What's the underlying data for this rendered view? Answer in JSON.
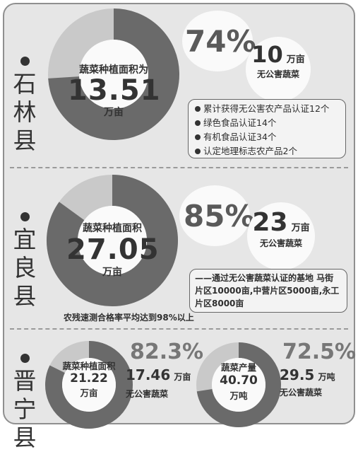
{
  "colors": {
    "dark": "#6a6a6a",
    "light": "#c9c9c9",
    "panel": "#e6e6e6",
    "text": "#333333"
  },
  "shilin": {
    "county": "石林县",
    "donut_label": "蔬菜种植面积为",
    "area_value": "13.51",
    "area_unit": "万亩",
    "percent": "74%",
    "percent_value": 74,
    "pollution_free_value": "10",
    "pollution_free_unit": "万亩",
    "pollution_free_label": "无公害蔬菜",
    "certifications": [
      "累计获得无公害农产品认证12个",
      "绿色食品认证14个",
      "有机食品认证34个",
      "认定地理标志农产品2个"
    ]
  },
  "yiliang": {
    "county": "宜良县",
    "donut_label": "蔬菜种植面积",
    "area_value": "27.05",
    "area_unit": "万亩",
    "percent": "85%",
    "percent_value": 85,
    "pollution_free_value": "23",
    "pollution_free_unit": "万亩",
    "pollution_free_label": "无公害蔬菜",
    "note": "——通过无公害蔬菜认证的基地 马街片区10000亩,中营片区5000亩,永工片区8000亩",
    "pass_rate": "农残速测合格率平均达到98%以上"
  },
  "jinning": {
    "county": "晋宁县",
    "area_label": "蔬菜种植面积",
    "area_value": "21.22",
    "area_unit": "万亩",
    "area_percent": "82.3%",
    "area_percent_value": 82.3,
    "pf_area_value": "17.46",
    "pf_area_unit": "万亩",
    "pf_area_label": "无公害蔬菜",
    "output_label": "蔬菜产量",
    "output_value": "40.70",
    "output_unit": "万吨",
    "output_percent": "72.5%",
    "output_percent_value": 72.5,
    "pf_output_value": "29.5",
    "pf_output_unit": "万吨",
    "pf_output_label": "无公害蔬菜"
  }
}
